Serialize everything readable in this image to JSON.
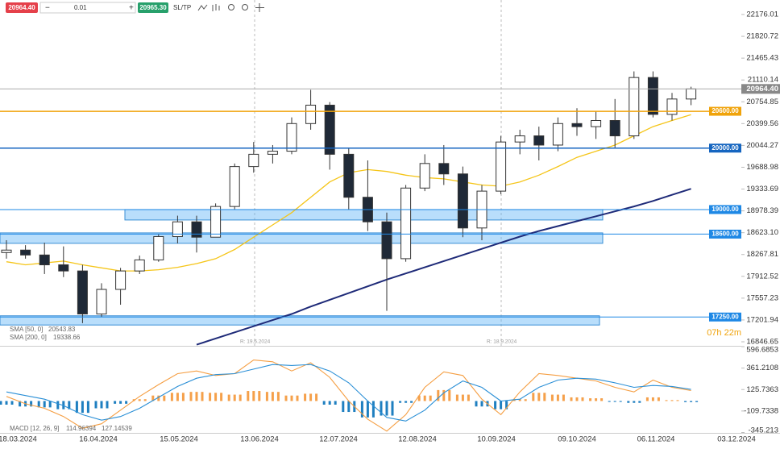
{
  "toolbar": {
    "sell": "20964.40",
    "volume": "0.01",
    "buy": "20965.30",
    "sltp": "SL/TP"
  },
  "chart_data": {
    "type": "candlestick",
    "ylim": [
      16846.65,
      22176.01
    ],
    "yticks": [
      22176.01,
      21820.72,
      21465.43,
      21110.14,
      20754.85,
      20399.56,
      20044.27,
      19688.98,
      19333.69,
      18978.39,
      {
        "value": 18623.1,
        "label": "18623.10"
      },
      18267.81,
      17912.52,
      17557.23,
      17201.94,
      16846.65
    ],
    "x_tick_labels": [
      "18.03.2024",
      "16.04.2024",
      "15.05.2024",
      "13.06.2024",
      "12.07.2024",
      "12.08.2024",
      "10.09.2024",
      "09.10.2024",
      "06.11.2024",
      "03.12.2024"
    ],
    "candles": {
      "open": [
        18300,
        18340,
        18260,
        18100,
        18000,
        17300,
        17700,
        18000,
        18180,
        18560,
        18800,
        18550,
        19050,
        19700,
        19900,
        19950,
        20400,
        20700,
        19900,
        19200,
        18800,
        18200,
        19350,
        19750,
        19580,
        18700,
        19300,
        20100,
        20200,
        20050,
        20400,
        20350,
        20450,
        20200,
        21150,
        20550,
        20800
      ],
      "high": [
        18500,
        18420,
        18460,
        18400,
        18100,
        17800,
        18050,
        18250,
        18600,
        18900,
        18900,
        19100,
        19750,
        20100,
        20050,
        20500,
        20950,
        20750,
        20000,
        19800,
        18950,
        19400,
        19900,
        20050,
        19700,
        19400,
        20200,
        20300,
        20350,
        20500,
        20650,
        20600,
        20800,
        21250,
        21250,
        20900,
        21000
      ],
      "low": [
        18200,
        18200,
        17950,
        17900,
        17150,
        17250,
        17450,
        17950,
        18150,
        18450,
        18300,
        18550,
        19000,
        19600,
        19750,
        19900,
        20300,
        19650,
        19000,
        18650,
        17350,
        18150,
        19300,
        19400,
        18550,
        18500,
        19250,
        19900,
        19800,
        19950,
        20200,
        20150,
        20000,
        20150,
        20500,
        20450,
        20700
      ],
      "close": [
        18340,
        18260,
        18100,
        18000,
        17300,
        17700,
        18000,
        18180,
        18560,
        18800,
        18550,
        19050,
        19700,
        19900,
        19950,
        20400,
        20700,
        19900,
        19200,
        18800,
        18200,
        19350,
        19750,
        19580,
        18700,
        19300,
        20100,
        20200,
        20050,
        20400,
        20350,
        20450,
        20200,
        21150,
        20550,
        20800,
        20964.4
      ],
      "up_color": "#26a69a",
      "down_color": "#1f2937"
    },
    "last_price": {
      "value": 20964.4,
      "label": "20964.40"
    },
    "countdown": "07h 22m",
    "overlays": [
      {
        "name": "SMA [50, 0]",
        "color": "#f5c518",
        "values": [
          18150,
          18100,
          18130,
          18160,
          18100,
          18050,
          18000,
          18000,
          18020,
          18060,
          18120,
          18200,
          18350,
          18550,
          18750,
          18950,
          19200,
          19450,
          19600,
          19650,
          19620,
          19560,
          19520,
          19500,
          19450,
          19400,
          19380,
          19450,
          19560,
          19700,
          19850,
          19950,
          20050,
          20200,
          20350,
          20450,
          20543.83
        ]
      },
      {
        "name": "SMA [200, 0]",
        "color": "#1e2a78",
        "values": [
          null,
          null,
          null,
          null,
          null,
          null,
          null,
          null,
          null,
          null,
          16800,
          16900,
          17000,
          17100,
          17200,
          17300,
          17420,
          17530,
          17640,
          17750,
          17860,
          17960,
          18060,
          18160,
          18260,
          18360,
          18460,
          18560,
          18650,
          18730,
          18810,
          18890,
          18970,
          19050,
          19140,
          19240,
          19338.66
        ]
      }
    ],
    "levels": [
      {
        "value": 20600,
        "label": "20600.00",
        "color": "#f0a30a"
      },
      {
        "value": 20000,
        "label": "20000.00",
        "color": "#1565c0"
      },
      {
        "value": 19000,
        "label": "19000.00",
        "color": "#1e88e5"
      },
      {
        "value": 18600,
        "label": "18600.00",
        "color": "#1e88e5"
      },
      {
        "value": 17250,
        "label": "17250.00",
        "color": "#1e88e5"
      }
    ],
    "zones": [
      {
        "low": 18830,
        "high": 19000
      },
      {
        "low": 18450,
        "high": 18620
      },
      {
        "low": 17120,
        "high": 17270
      }
    ],
    "markers": [
      "R: 19.6.2024",
      "R: 18.9.2024"
    ],
    "macd": {
      "name": "MACD [12, 26, 9]",
      "ylim": [
        -345.213,
        596.6853
      ],
      "yticks": [
        596.6853,
        361.2108,
        125.7363,
        -109.7338,
        -345.213
      ],
      "macd_color": "#f59e42",
      "signal_color": "#2a8fd6",
      "hist_up_color": "#f5a04a",
      "hist_down_color": "#1f7fc0",
      "histogram": [
        -40,
        -60,
        -70,
        -90,
        -130,
        -80,
        -30,
        20,
        60,
        90,
        100,
        90,
        70,
        110,
        100,
        60,
        80,
        -40,
        -120,
        -180,
        -160,
        -20,
        60,
        120,
        70,
        -60,
        -90,
        20,
        90,
        70,
        40,
        30,
        -10,
        -20,
        40,
        10,
        -12.18145
      ],
      "macd": [
        50,
        -30,
        -80,
        -170,
        -300,
        -250,
        -100,
        50,
        180,
        300,
        330,
        280,
        300,
        450,
        430,
        330,
        420,
        260,
        0,
        -200,
        -330,
        -150,
        150,
        320,
        280,
        20,
        -150,
        100,
        300,
        280,
        250,
        220,
        150,
        100,
        230,
        150,
        114.96394
      ],
      "signal": [
        100,
        60,
        20,
        -50,
        -150,
        -210,
        -170,
        -80,
        40,
        160,
        250,
        290,
        300,
        350,
        400,
        390,
        400,
        330,
        200,
        0,
        -180,
        -220,
        -100,
        90,
        220,
        150,
        0,
        20,
        150,
        230,
        250,
        240,
        200,
        150,
        170,
        160,
        127.14539
      ]
    }
  }
}
